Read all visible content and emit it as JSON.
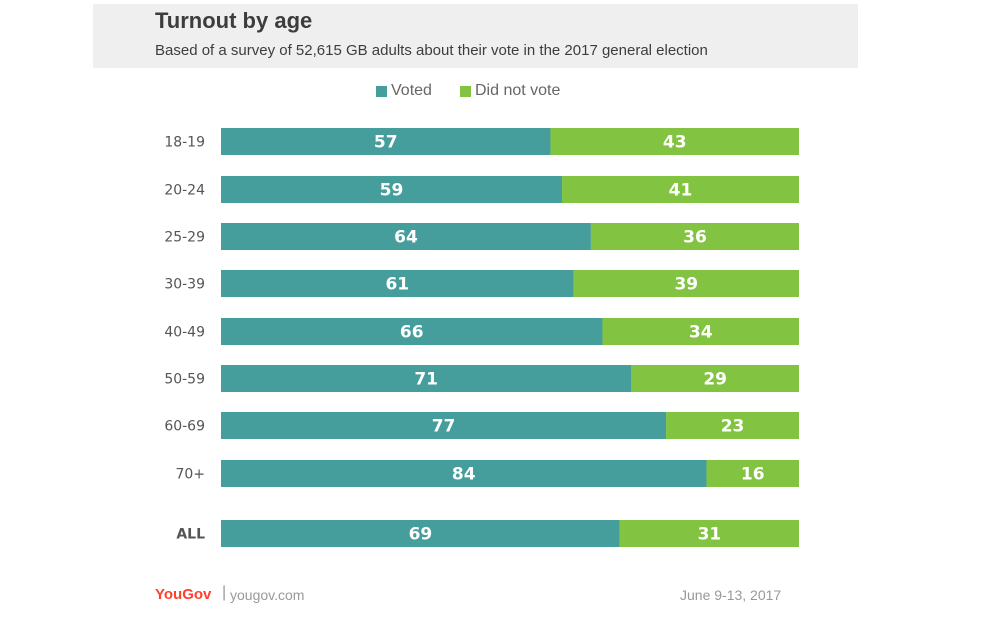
{
  "colors": {
    "voted": "#469e9c",
    "did_not_vote": "#82c341",
    "background": "#ffffff",
    "header_bg": "#efefef"
  },
  "chart_data": {
    "type": "bar",
    "orientation": "horizontal",
    "stacked": true,
    "title": "Turnout by age",
    "subtitle": "Based of a survey of 52,615 GB adults about their vote in the 2017 general election",
    "categories": [
      "18-19",
      "20-24",
      "25-29",
      "30-39",
      "40-49",
      "50-59",
      "60-69",
      "70+",
      "ALL"
    ],
    "series": [
      {
        "name": "Voted",
        "values": [
          57,
          59,
          64,
          61,
          66,
          71,
          77,
          84,
          69
        ]
      },
      {
        "name": "Did not vote",
        "values": [
          43,
          41,
          36,
          39,
          34,
          29,
          23,
          16,
          31
        ]
      }
    ],
    "xlim": [
      0,
      100
    ],
    "legend": "top-center",
    "grid": false
  },
  "footer": {
    "logo": "YouGov",
    "separator": "|",
    "site": "yougov.com",
    "date": "June 9-13, 2017"
  }
}
